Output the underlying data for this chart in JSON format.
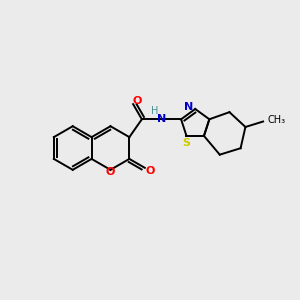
{
  "bg_color": "#ebebeb",
  "bond_color": "#000000",
  "atom_colors": {
    "O": "#ff0000",
    "N": "#0000cc",
    "S": "#cccc00",
    "NH_color": "#4a9090",
    "C": "#000000"
  },
  "lw": 1.4
}
